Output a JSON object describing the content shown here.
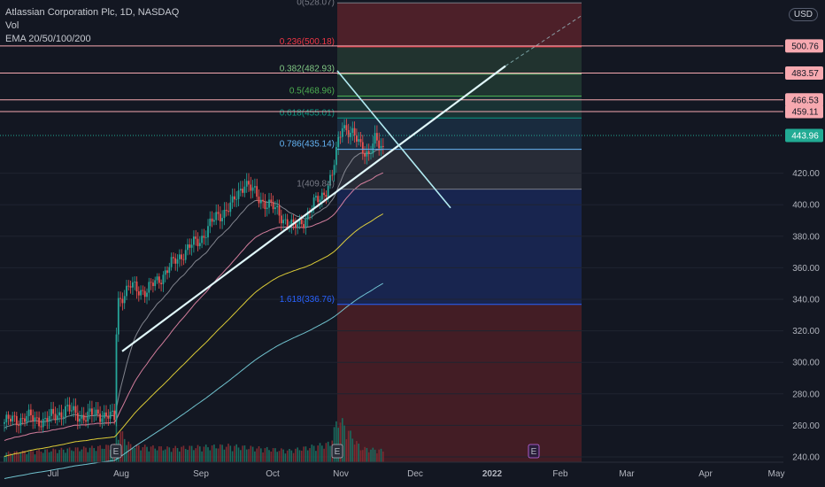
{
  "header": {
    "title": "Atlassian Corporation Plc, 1D, NASDAQ",
    "vol": "Vol",
    "ema": "EMA 20/50/100/200",
    "currency": "USD"
  },
  "chart_data": {
    "type": "candlestick",
    "y_range": [
      235,
      545
    ],
    "y_ticks": [
      240,
      260,
      280,
      300,
      320,
      340,
      360,
      380,
      400,
      420
    ],
    "x_ticks": [
      "Jul",
      "Aug",
      "Sep",
      "Oct",
      "Nov",
      "Dec",
      "2022",
      "Feb",
      "Mar",
      "Apr",
      "May"
    ],
    "current_price": {
      "value": 443.96,
      "label": "443.96",
      "color": "#22ab94"
    },
    "horizontal_levels": [
      {
        "value": 500.76,
        "label": "500.76",
        "color": "#f7a9b0"
      },
      {
        "value": 483.57,
        "label": "483.57",
        "color": "#f7a9b0"
      },
      {
        "value": 466.53,
        "label": "466.53",
        "color": "#f7a9b0"
      },
      {
        "value": 459.11,
        "label": "459.11",
        "color": "#f7a9b0"
      }
    ],
    "fibonacci": {
      "levels": [
        {
          "ratio": 0.236,
          "value": 500.18,
          "label": "0.236(500.18)",
          "color": "#f23645"
        },
        {
          "ratio": 0.382,
          "value": 482.93,
          "label": "0.382(482.93)",
          "color": "#81c784"
        },
        {
          "ratio": 0.5,
          "value": 468.96,
          "label": "0.5(468.96)",
          "color": "#4caf50"
        },
        {
          "ratio": 0.618,
          "value": 455.01,
          "label": "0.618(455.01)",
          "color": "#089981"
        },
        {
          "ratio": 0.786,
          "value": 435.14,
          "label": "0.786(435.14)",
          "color": "#64b5f6"
        },
        {
          "ratio": 1,
          "value": 409.84,
          "label": "1(409.84)",
          "color": "#787b86"
        },
        {
          "ratio": 1.618,
          "value": 336.76,
          "label": "1.618(336.76)",
          "color": "#2962ff"
        }
      ],
      "top_label": "0(528.07)"
    },
    "earnings_marker": "E",
    "series": {
      "ema_colors": [
        "#9598a1",
        "#f48fb1",
        "#ffeb3b",
        "#80deea"
      ],
      "close_anchors": [
        [
          0,
          262
        ],
        [
          10,
          265
        ],
        [
          20,
          263
        ],
        [
          30,
          270
        ],
        [
          40,
          265
        ],
        [
          46,
          268
        ],
        [
          54,
          264
        ],
        [
          55,
          320
        ],
        [
          56,
          340
        ],
        [
          62,
          348
        ],
        [
          70,
          345
        ],
        [
          78,
          356
        ],
        [
          88,
          370
        ],
        [
          96,
          378
        ],
        [
          104,
          392
        ],
        [
          112,
          400
        ],
        [
          118,
          415
        ],
        [
          124,
          405
        ],
        [
          130,
          400
        ],
        [
          136,
          393
        ],
        [
          142,
          385
        ],
        [
          148,
          392
        ],
        [
          152,
          400
        ],
        [
          158,
          410
        ],
        [
          161,
          418
        ],
        [
          164,
          440
        ],
        [
          166,
          452
        ],
        [
          170,
          445
        ],
        [
          175,
          438
        ],
        [
          179,
          432
        ],
        [
          182,
          440
        ],
        [
          186,
          436
        ]
      ],
      "volume_anchors": [
        [
          0,
          0.2
        ],
        [
          20,
          0.25
        ],
        [
          40,
          0.3
        ],
        [
          54,
          0.35
        ],
        [
          55,
          1.0
        ],
        [
          56,
          0.7
        ],
        [
          62,
          0.35
        ],
        [
          80,
          0.3
        ],
        [
          110,
          0.35
        ],
        [
          140,
          0.25
        ],
        [
          160,
          0.4
        ],
        [
          164,
          0.95
        ],
        [
          175,
          0.3
        ],
        [
          186,
          0.25
        ]
      ]
    }
  }
}
